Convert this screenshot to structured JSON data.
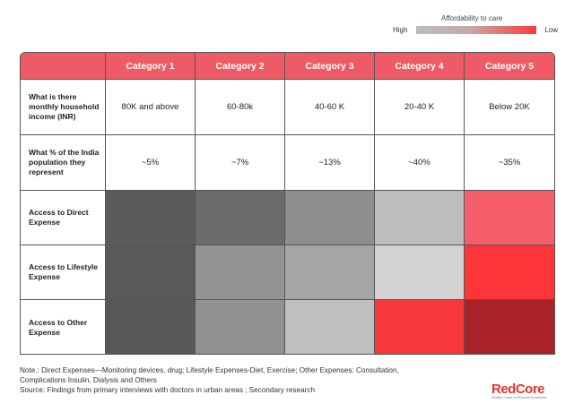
{
  "legend": {
    "title": "Affordability to care",
    "high_label": "High",
    "low_label": "Low",
    "color_high": "#bdbdbd",
    "color_low": "#ff3a3a"
  },
  "chart_data": {
    "type": "heatmap",
    "corner_label": "",
    "columns": [
      "Category 1",
      "Category 2",
      "Category 3",
      "Category 4",
      "Category 5"
    ],
    "text_rows": [
      {
        "label": "What is there monthly household income (INR)",
        "values": [
          "80K and above",
          "60-80k",
          "40-60 K",
          "20-40 K",
          "Below 20K"
        ]
      },
      {
        "label": "What % of the India population they represent",
        "values": [
          "~5%",
          "~7%",
          "~13%",
          "~40%",
          "~35%"
        ]
      }
    ],
    "heat_rows": [
      {
        "label": "Access to Direct Expense",
        "colors": [
          "#5b5b5b",
          "#6d6a6a",
          "#8e8e8e",
          "#bdbdbd",
          "#f55d6a"
        ]
      },
      {
        "label": "Access to Lifestyle Expense",
        "colors": [
          "#595959",
          "#939393",
          "#a5a5a5",
          "#d3d3d3",
          "#fb3538"
        ]
      },
      {
        "label": "Access to Other Expense",
        "colors": [
          "#585858",
          "#919191",
          "#bfbfbf",
          "#f6373b",
          "#a92227"
        ]
      }
    ],
    "header_color": "#ee5b67"
  },
  "notes": {
    "line1": "Note.: Direct Expenses—Monitoring devices, drug; Lifestyle Expenses-Diet, Exercise; Other Expenses: Consultation,",
    "line2": "Complications Insulin, Dialysis and Others",
    "line3": "Source: Findings from primary interviews with doctors in urban areas ; Secondary research"
  },
  "logo": {
    "text_red": "Red",
    "text_core": "Core",
    "tagline": "Medline Centre of Research Excellence"
  }
}
